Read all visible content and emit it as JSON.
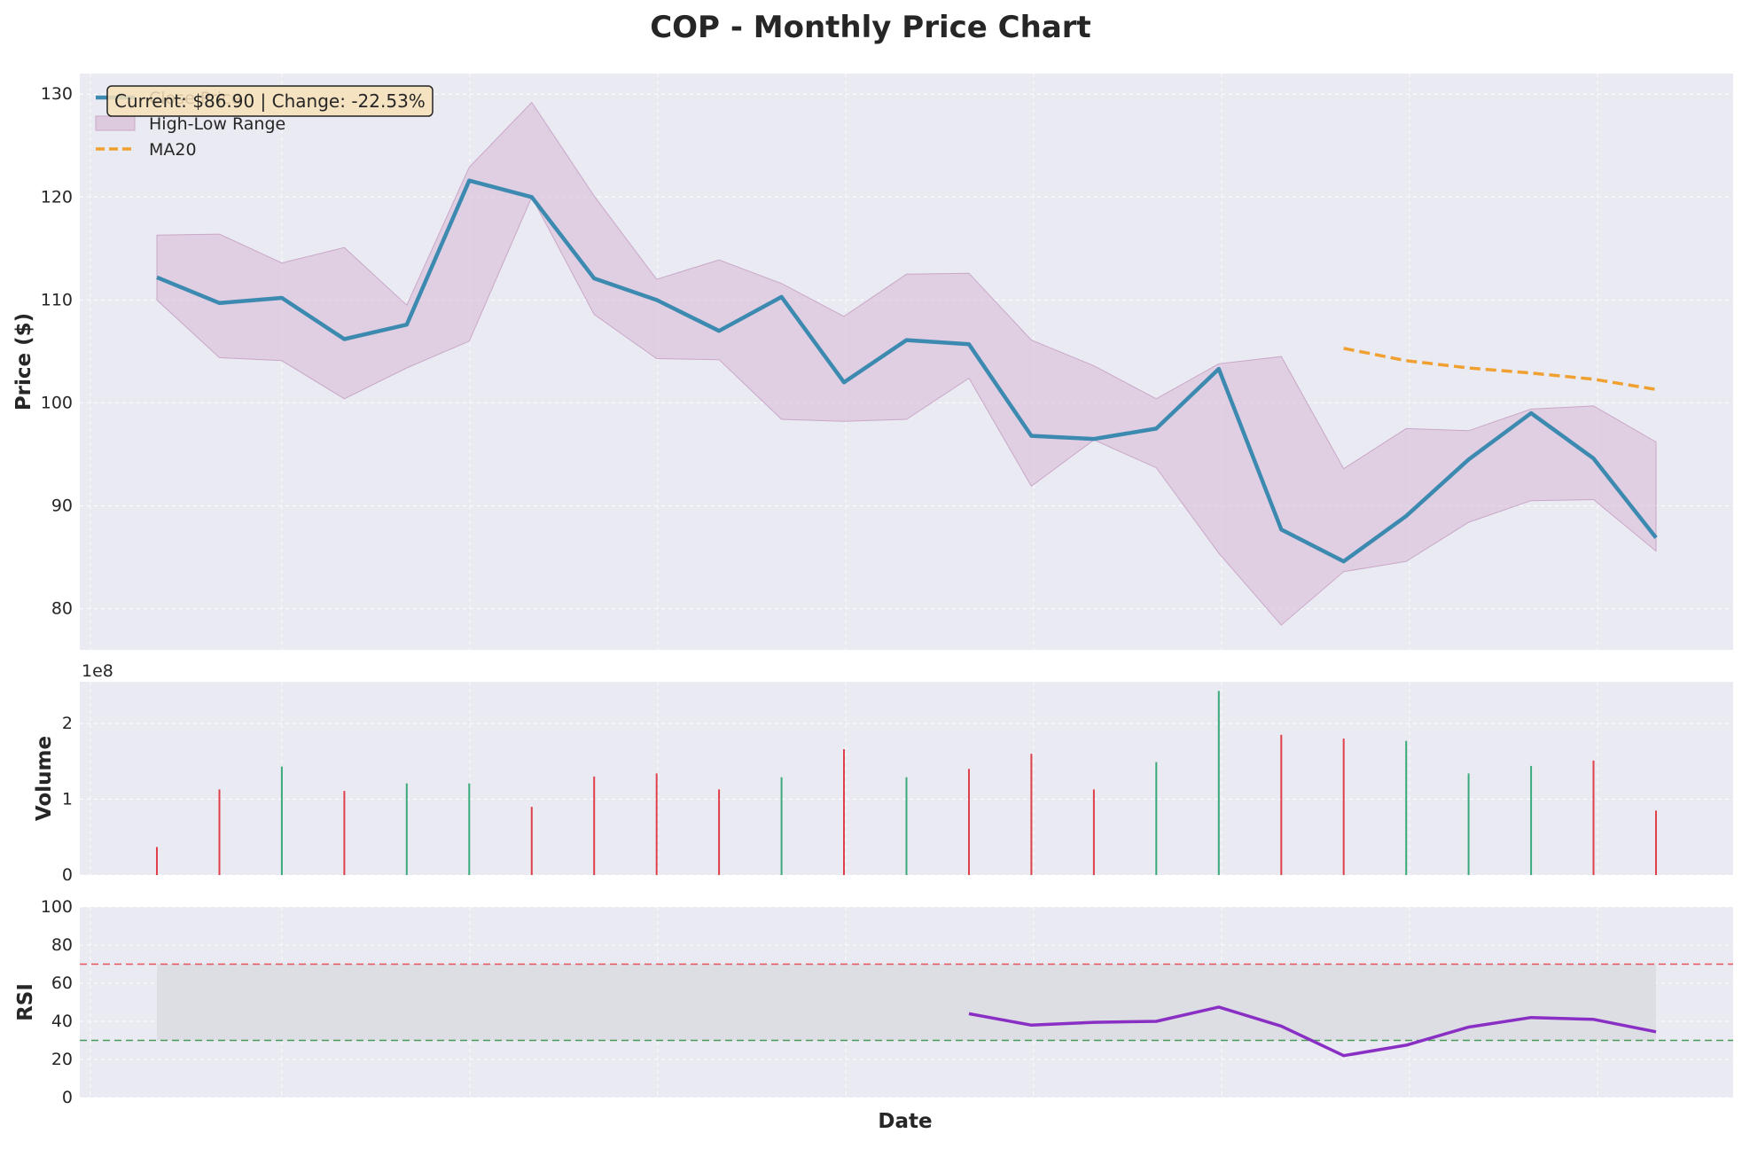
{
  "title": "COP - Monthly Price Chart",
  "colors": {
    "background": "#ffffff",
    "panel": "#eaeaf2",
    "grid": "#ffffff",
    "close_line": "#3d8ab1",
    "range_fill": "#d8bcd7",
    "ma_line": "#f0a030",
    "volume_up": "#3aaa7a",
    "volume_down": "#e0404a",
    "rsi_line": "#8a2fc4",
    "rsi_overbought": "#e8545c",
    "rsi_oversold": "#4a9a5a",
    "rsi_band": "#dcdce2",
    "annotation_bg": "#f7e1b8",
    "text": "#262626"
  },
  "chart_data": [
    {
      "type": "line",
      "panel": "price",
      "title": "COP - Monthly Price Chart",
      "xlabel": "",
      "ylabel": "Price ($)",
      "ylim": [
        76,
        132
      ],
      "yticks": [
        80,
        90,
        100,
        110,
        120,
        130
      ],
      "grid": true,
      "legend_position": "top-left",
      "annotation": "Current: $86.90 | Change: -22.53%",
      "series": [
        {
          "name": "Close Price",
          "kind": "line",
          "values": [
            112.2,
            109.7,
            110.2,
            106.2,
            107.6,
            121.6,
            120.0,
            112.1,
            110.0,
            107.0,
            110.3,
            102.0,
            106.1,
            105.7,
            96.8,
            96.5,
            97.5,
            103.3,
            87.7,
            84.6,
            89.0,
            94.5,
            99.0,
            94.6,
            86.9
          ]
        },
        {
          "name": "High-Low Range",
          "kind": "band",
          "high": [
            116.3,
            116.4,
            113.6,
            115.1,
            109.5,
            122.9,
            129.2,
            120.1,
            112.0,
            113.9,
            111.6,
            108.4,
            112.5,
            112.6,
            106.1,
            103.6,
            100.4,
            103.8,
            104.5,
            93.6,
            97.5,
            97.3,
            99.4,
            99.7,
            96.2
          ],
          "low": [
            110.0,
            104.4,
            104.1,
            100.4,
            103.4,
            106.0,
            120.0,
            108.6,
            104.3,
            104.2,
            98.4,
            98.2,
            98.4,
            102.4,
            91.9,
            96.4,
            93.7,
            85.4,
            78.4,
            83.6,
            84.6,
            88.4,
            90.5,
            90.6,
            85.6
          ]
        },
        {
          "name": "MA20",
          "kind": "dashed",
          "start_index": 19,
          "values": [
            105.3,
            104.1,
            103.4,
            102.9,
            102.3,
            101.3
          ]
        }
      ]
    },
    {
      "type": "bar",
      "panel": "volume",
      "ylabel": "Volume",
      "scale_label": "1e8",
      "yticks": [
        0,
        1,
        2
      ],
      "ylim": [
        0,
        2.55
      ],
      "grid": true,
      "values": [
        0.37,
        1.13,
        1.43,
        1.11,
        1.21,
        1.21,
        0.9,
        1.3,
        1.34,
        1.13,
        1.29,
        1.66,
        1.29,
        1.4,
        1.6,
        1.13,
        1.49,
        2.43,
        1.85,
        1.8,
        1.77,
        1.34,
        1.44,
        1.51,
        0.85
      ],
      "direction": [
        "down",
        "down",
        "up",
        "down",
        "up",
        "up",
        "down",
        "down",
        "down",
        "down",
        "up",
        "down",
        "up",
        "down",
        "down",
        "down",
        "up",
        "up",
        "down",
        "down",
        "up",
        "up",
        "up",
        "down",
        "down"
      ]
    },
    {
      "type": "line",
      "panel": "rsi",
      "xlabel": "Date",
      "ylabel": "RSI",
      "ylim": [
        0,
        100
      ],
      "yticks": [
        0,
        20,
        40,
        60,
        80,
        100
      ],
      "overbought": 70,
      "oversold": 30,
      "grid": true,
      "start_index": 13,
      "values": [
        44,
        38,
        39.5,
        40,
        47.5,
        37.5,
        22,
        27.5,
        37,
        42,
        41,
        34.5
      ]
    }
  ]
}
